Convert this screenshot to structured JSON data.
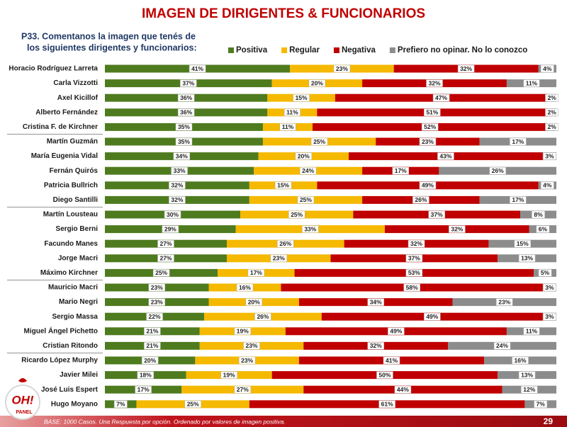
{
  "chart_data": {
    "type": "bar",
    "stacked": true,
    "orientation": "horizontal",
    "title": "IMAGEN DE DIRIGENTES & FUNCIONARIOS",
    "subtitle": [
      "P33. Comentanos la imagen que tenés de",
      "los siguientes dirigentes y funcionarios:"
    ],
    "legend": "top-right",
    "categories": [
      "Horacio Rodríguez Larreta",
      "Carla Vizzotti",
      "Axel Kicillof",
      "Alberto Fernández",
      "Cristina F. de Kirchner",
      "Martín Guzmán",
      "María Eugenia Vidal",
      "Fernán Quirós",
      "Patricia Bullrich",
      "Diego Santilli",
      "Martín Lousteau",
      "Sergio Berni",
      "Facundo Manes",
      "Jorge Macri",
      "Máximo Kirchner",
      "Mauricio Macri",
      "Mario Negri",
      "Sergio Massa",
      "Miguel Ángel Pichetto",
      "Cristian Ritondo",
      "Ricardo López Murphy",
      "Javier Milei",
      "José Luis Espert",
      "Hugo Moyano"
    ],
    "series": [
      {
        "name": "Positiva",
        "color": "#4f7b1f",
        "values": [
          41,
          37,
          36,
          36,
          35,
          35,
          34,
          33,
          32,
          32,
          30,
          29,
          27,
          27,
          25,
          23,
          23,
          22,
          21,
          21,
          20,
          18,
          17,
          7
        ],
        "value_labels": [
          "41%",
          "37%",
          "36%",
          "36%",
          "35%",
          "35%",
          "34%",
          "33%",
          "32%",
          "32%",
          "30%",
          "29%",
          "27%",
          "27%",
          "25%",
          "23%",
          "23%",
          "22%",
          "21%",
          "21%",
          "20%",
          "18%",
          "17%",
          "7%"
        ]
      },
      {
        "name": "Regular",
        "color": "#f5b900",
        "values": [
          23,
          20,
          15,
          11,
          11,
          25,
          20,
          24,
          15,
          25,
          25,
          33,
          26,
          23,
          17,
          16,
          20,
          26,
          19,
          23,
          23,
          19,
          27,
          25
        ],
        "value_labels": [
          "23%",
          "20%",
          "15%",
          "11%",
          "11%",
          "25%",
          "20%",
          "24%",
          "15%",
          "25%",
          "25%",
          "33%",
          "26%",
          "23%",
          "17%",
          "16%",
          "20%",
          "26%",
          "19%",
          "23%",
          "23%",
          "19%",
          "27%",
          "25%"
        ]
      },
      {
        "name": "Negativa",
        "color": "#c00000",
        "values": [
          32,
          32,
          47,
          51,
          52,
          23,
          43,
          17,
          49,
          26,
          37,
          32,
          32,
          37,
          53,
          58,
          34,
          49,
          49,
          32,
          41,
          50,
          44,
          61
        ],
        "value_labels": [
          "32%",
          "32%",
          "47%",
          "51%",
          "52%",
          "23%",
          "43%",
          "17%",
          "49%",
          "26%",
          "37%",
          "32%",
          "32%",
          "37%",
          "53%",
          "58%",
          "34%",
          "49%",
          "49%",
          "32%",
          "41%",
          "50%",
          "44%",
          "61%"
        ]
      },
      {
        "name": "Prefiero no opinar. No lo conozco",
        "color": "#8c8c8c",
        "values": [
          4,
          11,
          2,
          2,
          2,
          17,
          3,
          26,
          4,
          17,
          8,
          6,
          15,
          13,
          5,
          3,
          23,
          3,
          11,
          24,
          16,
          13,
          12,
          7
        ],
        "value_labels": [
          "4%",
          "11%",
          "2%",
          "2%",
          "2%",
          "17%",
          "3%",
          "26%",
          "4%",
          "17%",
          "8%",
          "6%",
          "15%",
          "13%",
          "5%",
          "3%",
          "23%",
          "3%",
          "11%",
          "24%",
          "16%",
          "13%",
          "12%",
          "7%"
        ]
      }
    ],
    "footnote": "BASE: 1000 Casos. Una Respuesta por opción. Ordenado por valores de imagen positiva.",
    "page_number": "29",
    "logo": {
      "main": "OH!",
      "sub": "PANEL"
    }
  }
}
